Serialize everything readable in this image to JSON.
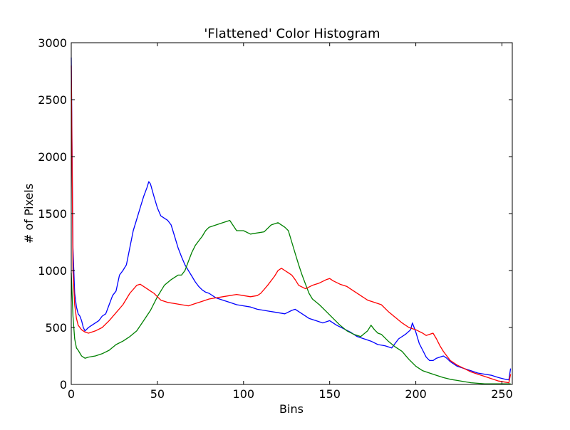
{
  "chart_data": {
    "type": "line",
    "title": "'Flattened' Color Histogram",
    "xlabel": "Bins",
    "ylabel": "# of Pixels",
    "xlim": [
      0,
      256
    ],
    "ylim": [
      0,
      3000
    ],
    "xticks": [
      0,
      50,
      100,
      150,
      200,
      250
    ],
    "yticks": [
      0,
      500,
      1000,
      1500,
      2000,
      2500,
      3000
    ],
    "grid": false,
    "legend": "none",
    "series": [
      {
        "color": "#0000ff",
        "points": [
          [
            0,
            2870
          ],
          [
            1,
            1200
          ],
          [
            2,
            800
          ],
          [
            3,
            680
          ],
          [
            4,
            620
          ],
          [
            5,
            600
          ],
          [
            6,
            560
          ],
          [
            7,
            500
          ],
          [
            8,
            470
          ],
          [
            10,
            500
          ],
          [
            12,
            520
          ],
          [
            14,
            540
          ],
          [
            16,
            560
          ],
          [
            18,
            600
          ],
          [
            20,
            620
          ],
          [
            22,
            700
          ],
          [
            24,
            780
          ],
          [
            26,
            820
          ],
          [
            28,
            960
          ],
          [
            30,
            1000
          ],
          [
            32,
            1050
          ],
          [
            34,
            1200
          ],
          [
            36,
            1350
          ],
          [
            38,
            1450
          ],
          [
            40,
            1550
          ],
          [
            42,
            1650
          ],
          [
            44,
            1730
          ],
          [
            45,
            1780
          ],
          [
            46,
            1760
          ],
          [
            48,
            1650
          ],
          [
            50,
            1550
          ],
          [
            52,
            1480
          ],
          [
            54,
            1460
          ],
          [
            56,
            1440
          ],
          [
            58,
            1400
          ],
          [
            60,
            1300
          ],
          [
            62,
            1200
          ],
          [
            64,
            1120
          ],
          [
            66,
            1050
          ],
          [
            68,
            1000
          ],
          [
            70,
            950
          ],
          [
            72,
            900
          ],
          [
            74,
            860
          ],
          [
            76,
            830
          ],
          [
            78,
            810
          ],
          [
            80,
            800
          ],
          [
            84,
            760
          ],
          [
            88,
            740
          ],
          [
            92,
            720
          ],
          [
            96,
            700
          ],
          [
            100,
            690
          ],
          [
            104,
            680
          ],
          [
            108,
            660
          ],
          [
            112,
            650
          ],
          [
            116,
            640
          ],
          [
            120,
            630
          ],
          [
            124,
            620
          ],
          [
            128,
            650
          ],
          [
            130,
            660
          ],
          [
            134,
            620
          ],
          [
            138,
            580
          ],
          [
            142,
            560
          ],
          [
            146,
            540
          ],
          [
            150,
            560
          ],
          [
            154,
            520
          ],
          [
            158,
            490
          ],
          [
            162,
            460
          ],
          [
            166,
            420
          ],
          [
            170,
            400
          ],
          [
            174,
            380
          ],
          [
            178,
            350
          ],
          [
            182,
            340
          ],
          [
            186,
            320
          ],
          [
            190,
            400
          ],
          [
            194,
            440
          ],
          [
            197,
            480
          ],
          [
            198,
            540
          ],
          [
            200,
            460
          ],
          [
            202,
            360
          ],
          [
            204,
            300
          ],
          [
            206,
            240
          ],
          [
            208,
            210
          ],
          [
            210,
            210
          ],
          [
            212,
            230
          ],
          [
            214,
            240
          ],
          [
            216,
            250
          ],
          [
            218,
            230
          ],
          [
            220,
            200
          ],
          [
            224,
            160
          ],
          [
            228,
            140
          ],
          [
            232,
            120
          ],
          [
            236,
            100
          ],
          [
            240,
            90
          ],
          [
            244,
            80
          ],
          [
            248,
            60
          ],
          [
            252,
            45
          ],
          [
            254,
            40
          ],
          [
            255,
            140
          ]
        ]
      },
      {
        "color": "#008000",
        "points": [
          [
            0,
            980
          ],
          [
            1,
            600
          ],
          [
            2,
            400
          ],
          [
            3,
            320
          ],
          [
            4,
            300
          ],
          [
            6,
            250
          ],
          [
            8,
            230
          ],
          [
            10,
            240
          ],
          [
            14,
            250
          ],
          [
            18,
            270
          ],
          [
            22,
            300
          ],
          [
            26,
            350
          ],
          [
            30,
            380
          ],
          [
            34,
            420
          ],
          [
            38,
            470
          ],
          [
            42,
            560
          ],
          [
            46,
            650
          ],
          [
            50,
            770
          ],
          [
            54,
            870
          ],
          [
            58,
            920
          ],
          [
            62,
            960
          ],
          [
            64,
            960
          ],
          [
            66,
            1000
          ],
          [
            68,
            1080
          ],
          [
            70,
            1160
          ],
          [
            72,
            1220
          ],
          [
            74,
            1260
          ],
          [
            76,
            1300
          ],
          [
            78,
            1350
          ],
          [
            80,
            1380
          ],
          [
            84,
            1400
          ],
          [
            88,
            1420
          ],
          [
            92,
            1440
          ],
          [
            96,
            1350
          ],
          [
            100,
            1350
          ],
          [
            104,
            1320
          ],
          [
            108,
            1330
          ],
          [
            112,
            1340
          ],
          [
            116,
            1400
          ],
          [
            120,
            1420
          ],
          [
            124,
            1380
          ],
          [
            126,
            1350
          ],
          [
            128,
            1250
          ],
          [
            130,
            1150
          ],
          [
            132,
            1050
          ],
          [
            134,
            960
          ],
          [
            136,
            880
          ],
          [
            138,
            800
          ],
          [
            140,
            750
          ],
          [
            144,
            700
          ],
          [
            148,
            640
          ],
          [
            152,
            580
          ],
          [
            156,
            520
          ],
          [
            160,
            470
          ],
          [
            164,
            440
          ],
          [
            168,
            420
          ],
          [
            172,
            470
          ],
          [
            174,
            520
          ],
          [
            176,
            480
          ],
          [
            178,
            450
          ],
          [
            180,
            440
          ],
          [
            184,
            380
          ],
          [
            188,
            330
          ],
          [
            192,
            290
          ],
          [
            196,
            220
          ],
          [
            200,
            160
          ],
          [
            204,
            120
          ],
          [
            208,
            100
          ],
          [
            212,
            80
          ],
          [
            216,
            60
          ],
          [
            220,
            45
          ],
          [
            224,
            35
          ],
          [
            228,
            25
          ],
          [
            232,
            15
          ],
          [
            236,
            10
          ],
          [
            240,
            5
          ],
          [
            244,
            5
          ],
          [
            250,
            5
          ],
          [
            255,
            5
          ]
        ]
      },
      {
        "color": "#ff0000",
        "points": [
          [
            0,
            2800
          ],
          [
            1,
            1000
          ],
          [
            2,
            700
          ],
          [
            3,
            580
          ],
          [
            4,
            520
          ],
          [
            5,
            500
          ],
          [
            6,
            480
          ],
          [
            8,
            460
          ],
          [
            10,
            450
          ],
          [
            14,
            470
          ],
          [
            18,
            500
          ],
          [
            22,
            560
          ],
          [
            26,
            630
          ],
          [
            30,
            700
          ],
          [
            34,
            800
          ],
          [
            38,
            870
          ],
          [
            40,
            880
          ],
          [
            42,
            860
          ],
          [
            44,
            840
          ],
          [
            46,
            820
          ],
          [
            48,
            800
          ],
          [
            50,
            770
          ],
          [
            52,
            740
          ],
          [
            56,
            720
          ],
          [
            60,
            710
          ],
          [
            64,
            700
          ],
          [
            68,
            690
          ],
          [
            72,
            710
          ],
          [
            76,
            730
          ],
          [
            80,
            750
          ],
          [
            84,
            760
          ],
          [
            88,
            770
          ],
          [
            92,
            780
          ],
          [
            96,
            790
          ],
          [
            100,
            780
          ],
          [
            104,
            770
          ],
          [
            108,
            780
          ],
          [
            110,
            800
          ],
          [
            114,
            870
          ],
          [
            118,
            950
          ],
          [
            120,
            1000
          ],
          [
            122,
            1020
          ],
          [
            124,
            1000
          ],
          [
            126,
            980
          ],
          [
            128,
            960
          ],
          [
            130,
            920
          ],
          [
            132,
            870
          ],
          [
            136,
            840
          ],
          [
            140,
            870
          ],
          [
            144,
            890
          ],
          [
            148,
            920
          ],
          [
            150,
            930
          ],
          [
            152,
            910
          ],
          [
            156,
            880
          ],
          [
            160,
            860
          ],
          [
            164,
            820
          ],
          [
            168,
            780
          ],
          [
            172,
            740
          ],
          [
            176,
            720
          ],
          [
            180,
            700
          ],
          [
            184,
            640
          ],
          [
            188,
            590
          ],
          [
            192,
            540
          ],
          [
            196,
            500
          ],
          [
            200,
            480
          ],
          [
            204,
            450
          ],
          [
            206,
            430
          ],
          [
            208,
            440
          ],
          [
            210,
            450
          ],
          [
            212,
            400
          ],
          [
            214,
            340
          ],
          [
            216,
            290
          ],
          [
            218,
            250
          ],
          [
            220,
            210
          ],
          [
            224,
            170
          ],
          [
            228,
            140
          ],
          [
            232,
            110
          ],
          [
            236,
            90
          ],
          [
            240,
            70
          ],
          [
            244,
            50
          ],
          [
            248,
            30
          ],
          [
            252,
            20
          ],
          [
            254,
            15
          ],
          [
            255,
            90
          ]
        ]
      }
    ]
  }
}
